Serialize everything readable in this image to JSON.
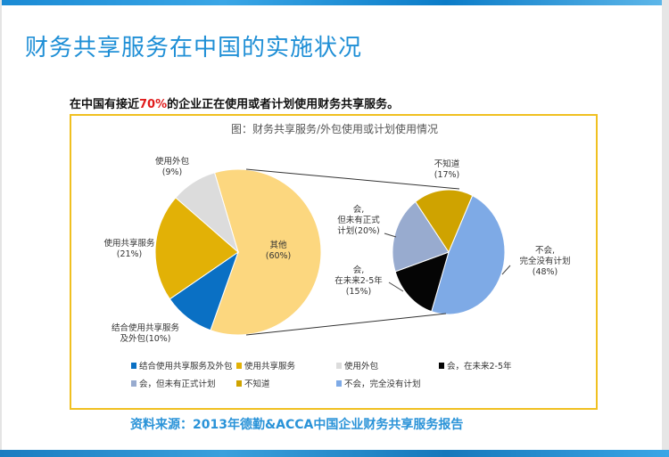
{
  "slide": {
    "title": "财务共享服务在中国的实施状况",
    "subtitle_pre": "在中国有接近",
    "subtitle_highlight": "70%",
    "subtitle_post": "的企业正在使用或者计划使用财务共享服务。",
    "source": "资料来源：2013年德勤&ACCA中国企业财务共享服务报告"
  },
  "chart_data": {
    "type": "pie",
    "title": "图：财务共享服务/外包使用或计划使用情况",
    "pies": [
      {
        "slices": [
          {
            "label": "其他",
            "pct_label": "(60%)",
            "value": 60,
            "color": "#fcd77f"
          },
          {
            "label": "结合使用共享服务及外包",
            "pct_label": "(10%)",
            "value": 10,
            "color": "#0a70c4"
          },
          {
            "label": "使用共享服务",
            "pct_label": "(21%)",
            "value": 21,
            "color": "#e2b106"
          },
          {
            "label": "使用外包",
            "pct_label": "(9%)",
            "value": 9,
            "color": "#dcdcdc"
          }
        ]
      },
      {
        "slices": [
          {
            "label": "不会，完全没有计划",
            "pct_label": "(48%)",
            "value": 48,
            "color": "#7eaae6"
          },
          {
            "label": "会，在未来2-5年",
            "pct_label": "(15%)",
            "value": 15,
            "color": "#050505"
          },
          {
            "label": "会，但未有正式计划",
            "pct_label": "(20%)",
            "value": 20,
            "color": "#98abcf"
          },
          {
            "label": "不知道",
            "pct_label": "(17%)",
            "value": 17,
            "color": "#cfa300"
          }
        ]
      }
    ],
    "slice_labels": {
      "outsource": [
        "使用外包",
        "(9%)"
      ],
      "shared": [
        "使用共享服务",
        "(21%)"
      ],
      "combined": [
        "结合使用共享服务",
        "及外包(10%)"
      ],
      "other": [
        "其他",
        "(60%)"
      ],
      "unknown": [
        "不知道",
        "(17%)"
      ],
      "noplan_lines": [
        "会,",
        "但未有正式",
        "计划(20%)"
      ],
      "future": [
        "会,",
        "在未来2-5年",
        "(15%)"
      ],
      "never": [
        "不会,",
        "完全没有计划",
        "(48%)"
      ]
    },
    "legend": [
      {
        "label": "结合使用共享服务及外包",
        "color": "#0a70c4"
      },
      {
        "label": "使用共享服务",
        "color": "#e2b106"
      },
      {
        "label": "使用外包",
        "color": "#dcdcdc"
      },
      {
        "label": "会，在未来2-5年",
        "color": "#050505"
      },
      {
        "label": "会，但未有正式计划",
        "color": "#98abcf"
      },
      {
        "label": "不知道",
        "color": "#cfa300"
      },
      {
        "label": "不会，完全没有计划",
        "color": "#7eaae6"
      }
    ],
    "legend_placement": "bottom"
  }
}
